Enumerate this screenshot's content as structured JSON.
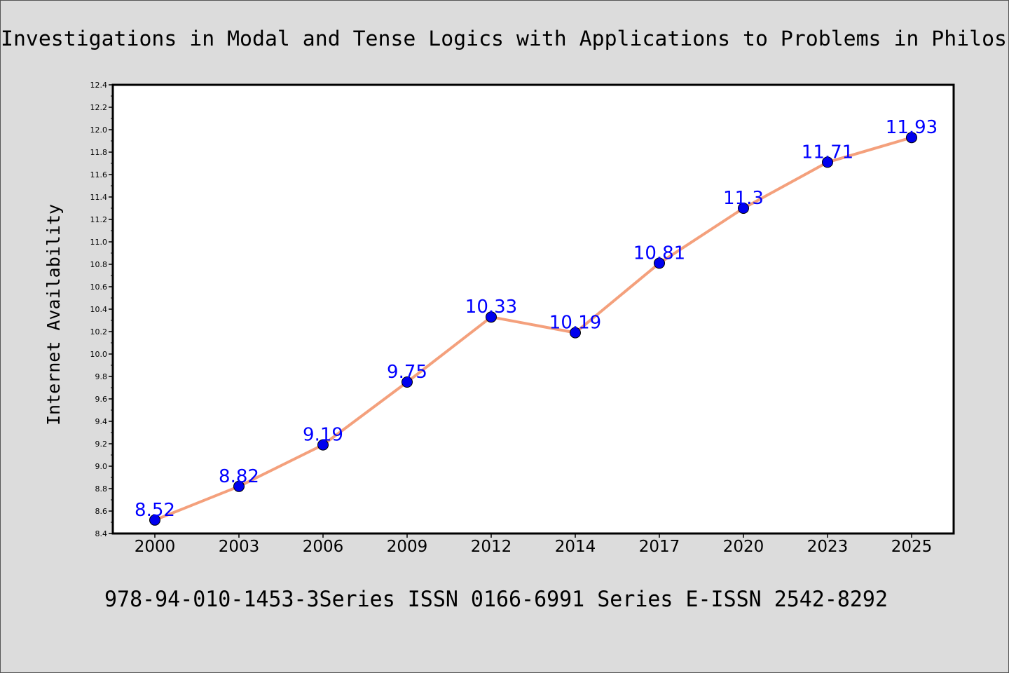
{
  "chart_data": {
    "type": "line",
    "title": "Investigations in Modal and Tense Logics with Applications to Problems in Philos",
    "subtitle": "978-94-010-1453-3Series ISSN 0166-6991 Series E-ISSN 2542-8292",
    "xlabel": "",
    "ylabel": "Internet Availability",
    "categories": [
      "2000",
      "2003",
      "2006",
      "2009",
      "2012",
      "2014",
      "2017",
      "2020",
      "2023",
      "2025"
    ],
    "series": [
      {
        "values": [
          8.52,
          8.82,
          9.19,
          9.75,
          10.33,
          10.19,
          10.81,
          11.3,
          11.71,
          11.93
        ],
        "data_labels": [
          "8.52",
          "8.82",
          "9.19",
          "9.75",
          "10.33",
          "10.19",
          "10.81",
          "11.3",
          "11.71",
          "11.93"
        ]
      }
    ],
    "ylim": [
      8.4,
      12.4
    ],
    "yticks": [
      "8.4",
      "8.6",
      "8.8",
      "9.0",
      "9.2",
      "9.4",
      "9.6",
      "9.8",
      "10.0",
      "10.2",
      "10.4",
      "10.6",
      "10.8",
      "11.0",
      "11.2",
      "11.4",
      "11.6",
      "11.8",
      "12.0",
      "12.2",
      "12.4"
    ],
    "grid": false,
    "legend": "none",
    "colors": {
      "line": "#f4a07c",
      "marker": "#0000ee",
      "data_label": "#0000ff",
      "background": "#dcdcdc",
      "plot_area": "#ffffff"
    }
  }
}
